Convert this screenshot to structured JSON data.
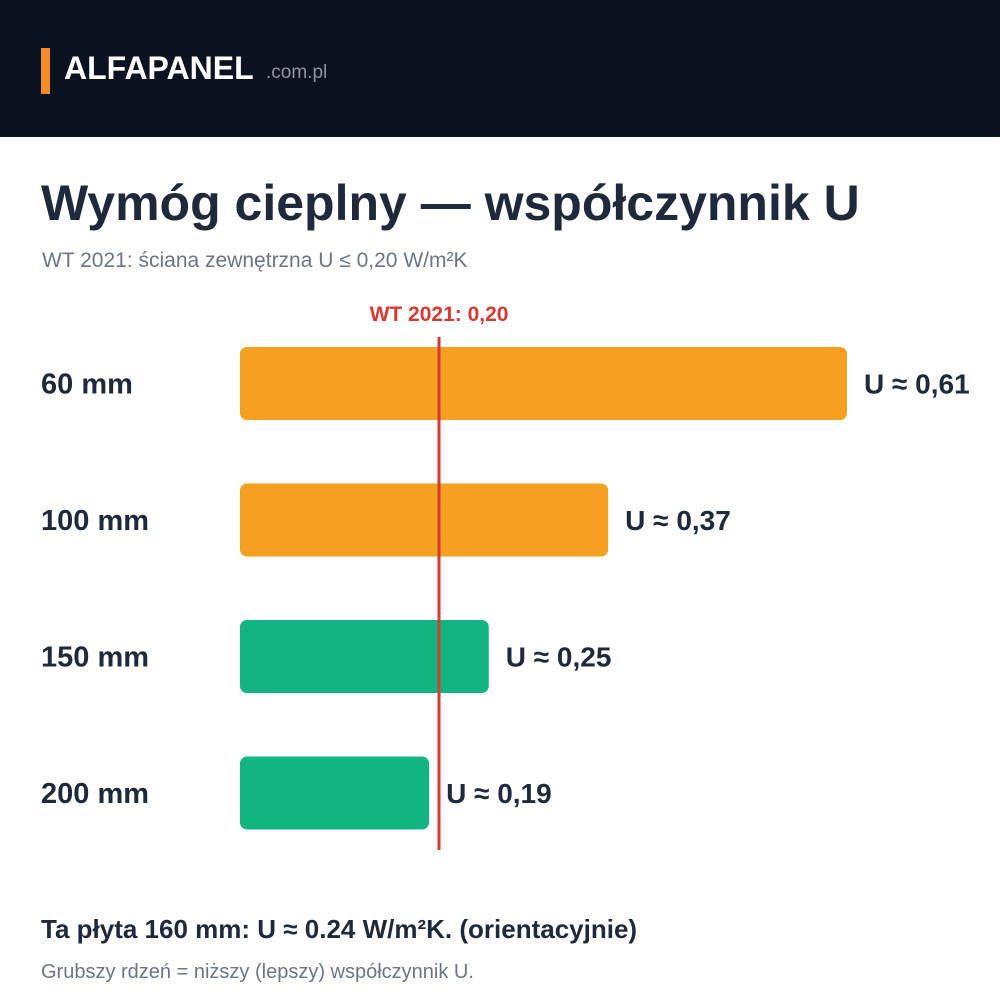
{
  "header": {
    "brand_name": "ALFAPANEL",
    "brand_domain": ".com.pl"
  },
  "title": "Wymóg cieplny — współczynnik U",
  "subtitle": "WT 2021: ściana zewnętrzna U ≤ 0,20 W/m²K",
  "colors": {
    "header_bg": "#0c1320",
    "accent": "#f28c28",
    "bar_fail": "#f5a020",
    "bar_pass": "#12b582",
    "threshold": "#d63a32",
    "text_dark": "#1e2a3b"
  },
  "chart_data": {
    "type": "bar",
    "orientation": "horizontal",
    "categories": [
      "60 mm",
      "100 mm",
      "150 mm",
      "200 mm"
    ],
    "values": [
      0.61,
      0.37,
      0.25,
      0.19
    ],
    "value_labels": [
      "U ≈ 0,61",
      "U ≈ 0,37",
      "U ≈ 0,25",
      "U ≈ 0,19"
    ],
    "threshold": {
      "value": 0.2,
      "label": "WT 2021: 0,20"
    },
    "xlim": [
      0,
      0.61
    ],
    "grid": false,
    "legend": "none"
  },
  "footer": {
    "note_main": "Ta płyta 160 mm: U ≈ 0.24 W/m²K. (orientacyjnie)",
    "note_sub": "Grubszy rdzeń = niższy (lepszy) współczynnik U."
  }
}
